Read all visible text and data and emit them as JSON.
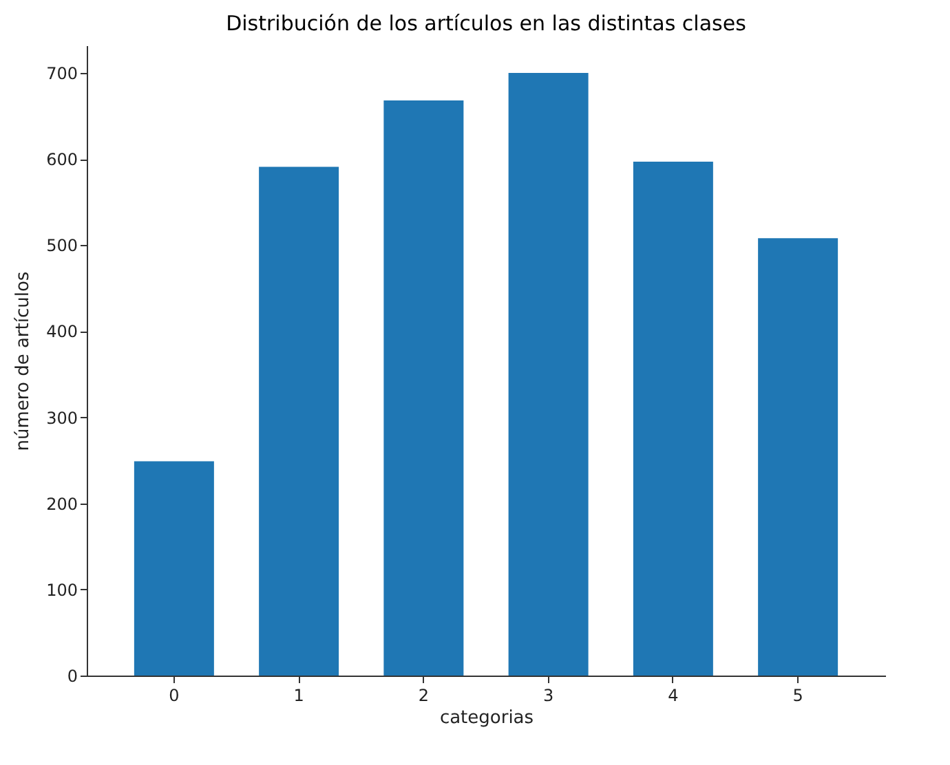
{
  "chart_data": {
    "type": "bar",
    "title": "Distribución de los artículos en las distintas clases",
    "xlabel": "categorias",
    "ylabel": "número de artículos",
    "categories": [
      "0",
      "1",
      "2",
      "3",
      "4",
      "5"
    ],
    "values": [
      249,
      591,
      668,
      700,
      597,
      508
    ],
    "color": "#1f77b4",
    "ylim": [
      0,
      732
    ],
    "yticks": [
      0,
      100,
      200,
      300,
      400,
      500,
      600,
      700
    ],
    "grid": false
  }
}
